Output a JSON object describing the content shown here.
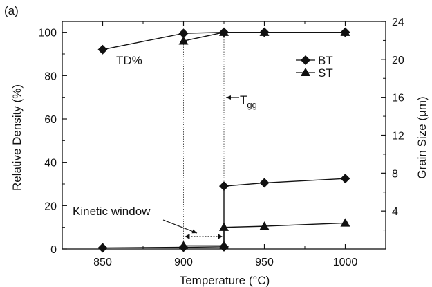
{
  "panel_label": "(a)",
  "chart_data": {
    "type": "line",
    "xlabel_main": "Temperature (",
    "xlabel_unit": "°C",
    "xlabel_close": ")",
    "ylabel": "Relative Density (%)",
    "y2label_main": "Grain Size (",
    "y2label_unit": "μm",
    "y2label_close": ")",
    "xlim": [
      825,
      1025
    ],
    "ylim": [
      0,
      105
    ],
    "y2lim": [
      0,
      24
    ],
    "xticks": [
      850,
      900,
      950,
      1000
    ],
    "xticks_minor": [
      875,
      925,
      975
    ],
    "yticks": [
      0,
      20,
      40,
      60,
      80,
      100
    ],
    "y2ticks": [
      4,
      8,
      12,
      16,
      20,
      24
    ],
    "series": [
      {
        "name": "BT",
        "marker": "diamond",
        "axis": "left",
        "x": [
          850,
          900,
          925,
          950,
          1000
        ],
        "y": [
          92,
          99.5,
          100,
          100,
          100
        ]
      },
      {
        "name": "ST",
        "marker": "triangle",
        "axis": "left",
        "x": [
          900,
          925,
          950,
          1000
        ],
        "y": [
          96,
          100,
          100,
          100
        ]
      },
      {
        "name": "BT",
        "marker": "diamond",
        "axis": "left",
        "x": [
          850,
          900,
          925,
          925,
          950,
          1000
        ],
        "y": [
          0.5,
          0.8,
          1.0,
          29,
          30.5,
          32.5
        ]
      },
      {
        "name": "ST",
        "marker": "triangle",
        "axis": "left",
        "x": [
          900,
          925,
          925,
          950,
          1000
        ],
        "y": [
          1.5,
          1.5,
          10,
          10.5,
          12
        ]
      }
    ],
    "legend": {
      "position": "top-right",
      "entries": [
        {
          "label": "BT",
          "marker": "diamond"
        },
        {
          "label": "ST",
          "marker": "triangle"
        }
      ]
    },
    "reference_lines_x": [
      900,
      925
    ],
    "annotations": {
      "td": "TD%",
      "tgg_main": "T",
      "tgg_sub": "gg",
      "kinetic_window": "Kinetic window",
      "kinetic_window_range": [
        900,
        925
      ]
    }
  }
}
